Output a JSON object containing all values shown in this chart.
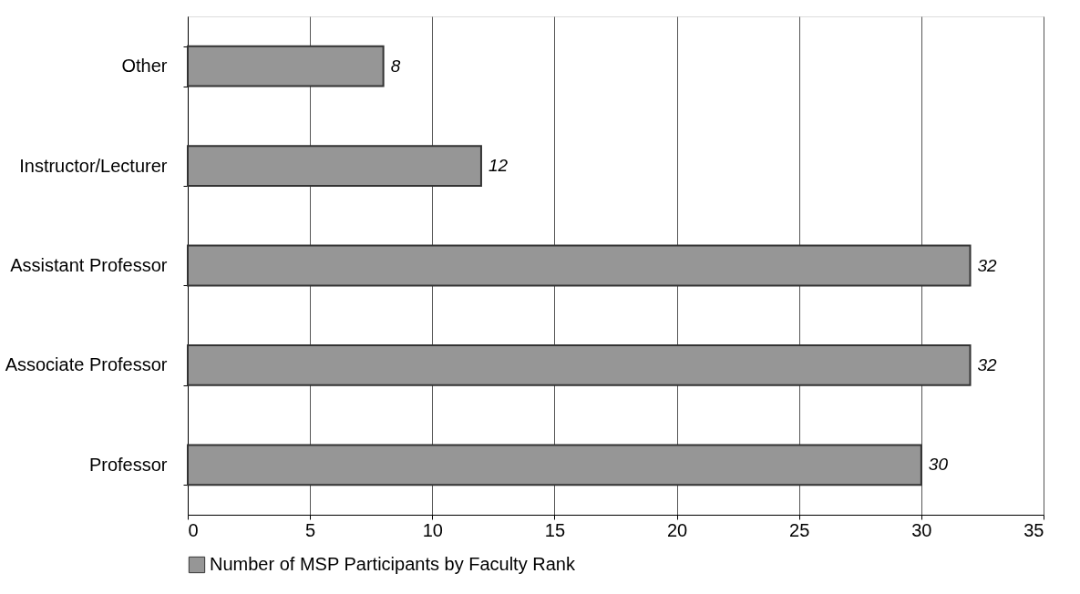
{
  "chart_data": {
    "type": "bar",
    "orientation": "horizontal",
    "categories": [
      "Other",
      "Instructor/Lecturer",
      "Assistant Professor",
      "Associate Professor",
      "Professor"
    ],
    "series": [
      {
        "name": "Number of MSP Participants by Faculty Rank",
        "color": "#969696",
        "values": [
          8,
          12,
          32,
          32,
          30
        ]
      }
    ],
    "xlim": [
      0,
      35
    ],
    "xticks": [
      0,
      5,
      10,
      15,
      20,
      25,
      30,
      35
    ],
    "grid": "x",
    "legend": "bottom",
    "data_labels": true
  }
}
